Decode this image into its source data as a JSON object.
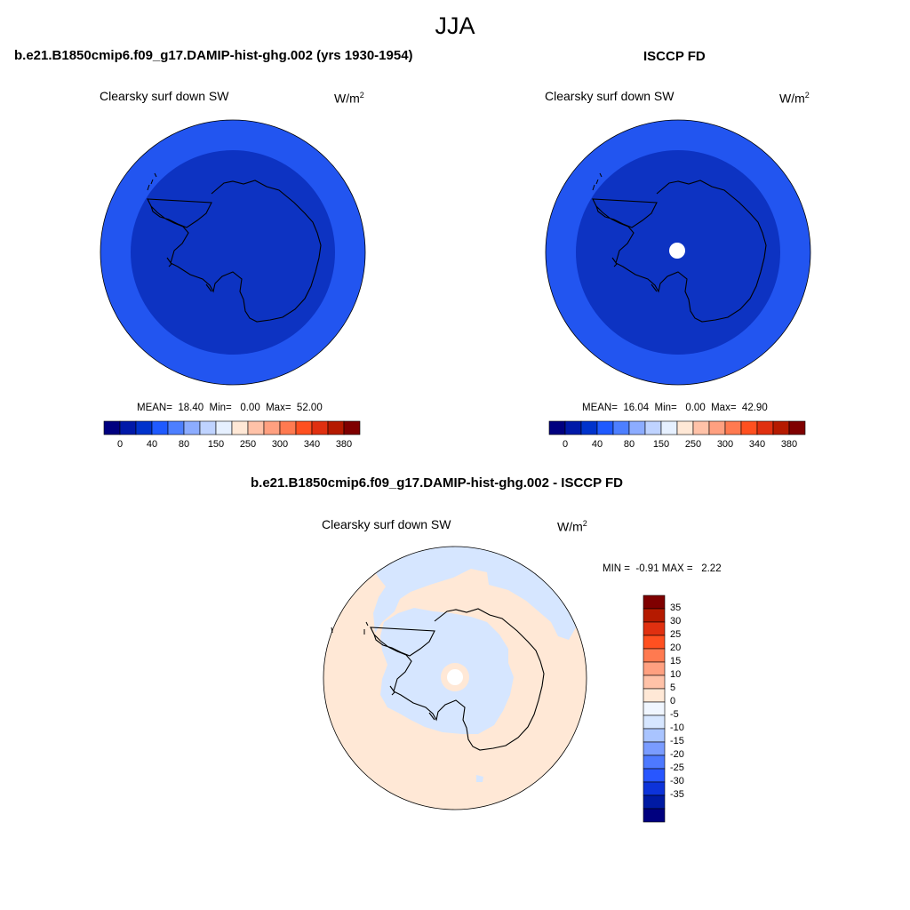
{
  "season": "JJA",
  "panels": [
    {
      "title": "b.e21.B1850cmip6.f09_g17.DAMIP-hist-ghg.002 (yrs 1930-1954)",
      "variable": "Clearsky surf down SW",
      "units_base": "W/m",
      "units_exp": "2",
      "stats": "MEAN=  18.40  Min=   0.00  Max=  52.00",
      "colorbar": {
        "colors": [
          "#00007f",
          "#0019a8",
          "#0033cc",
          "#1f5aff",
          "#4d7fff",
          "#8cacff",
          "#bfd3ff",
          "#e6f0ff",
          "#ffe8d6",
          "#ffc2a8",
          "#ffa080",
          "#ff7a50",
          "#ff5020",
          "#e03010",
          "#b51a00",
          "#7f0000"
        ],
        "tick_labels": [
          "0",
          "40",
          "80",
          "150",
          "250",
          "300",
          "340",
          "380"
        ]
      },
      "map": {
        "outer_ring_color": "#2255f0",
        "inner_disc_color": "#0d33c2",
        "pole_hole": false
      }
    },
    {
      "title": "ISCCP FD",
      "variable": "Clearsky surf down SW",
      "units_base": "W/m",
      "units_exp": "2",
      "stats": "MEAN=  16.04  Min=   0.00  Max=  42.90",
      "colorbar": {
        "colors": [
          "#00007f",
          "#0019a8",
          "#0033cc",
          "#1f5aff",
          "#4d7fff",
          "#8cacff",
          "#bfd3ff",
          "#e6f0ff",
          "#ffe8d6",
          "#ffc2a8",
          "#ffa080",
          "#ff7a50",
          "#ff5020",
          "#e03010",
          "#b51a00",
          "#7f0000"
        ],
        "tick_labels": [
          "0",
          "40",
          "80",
          "150",
          "250",
          "300",
          "340",
          "380"
        ]
      },
      "map": {
        "outer_ring_color": "#2255f0",
        "inner_disc_color": "#0d33c2",
        "pole_hole": true
      }
    }
  ],
  "diff": {
    "title": "b.e21.B1850cmip6.f09_g17.DAMIP-hist-ghg.002 - ISCCP FD",
    "variable": "Clearsky surf down SW",
    "units_base": "W/m",
    "units_exp": "2",
    "minmax": "MIN =  -0.91 MAX =   2.22",
    "colorbar": {
      "colors_top_to_bottom": [
        "#7f0000",
        "#b51a00",
        "#e03010",
        "#ff5020",
        "#ff7a50",
        "#ffa080",
        "#ffc2a8",
        "#ffe8d6",
        "#f0f6ff",
        "#d6e6ff",
        "#a9c4ff",
        "#7a9cff",
        "#4d79ff",
        "#2856ff",
        "#0d33d9",
        "#001aa3",
        "#00007f"
      ],
      "tick_labels_top_to_bottom": [
        "35",
        "30",
        "25",
        "20",
        "15",
        "10",
        "5",
        "0",
        "-5",
        "-10",
        "-15",
        "-20",
        "-25",
        "-30",
        "-35"
      ]
    },
    "map": {
      "positive_color": "#ffe8d6",
      "negative_color": "#d6e6ff",
      "pole_hole": true
    }
  }
}
